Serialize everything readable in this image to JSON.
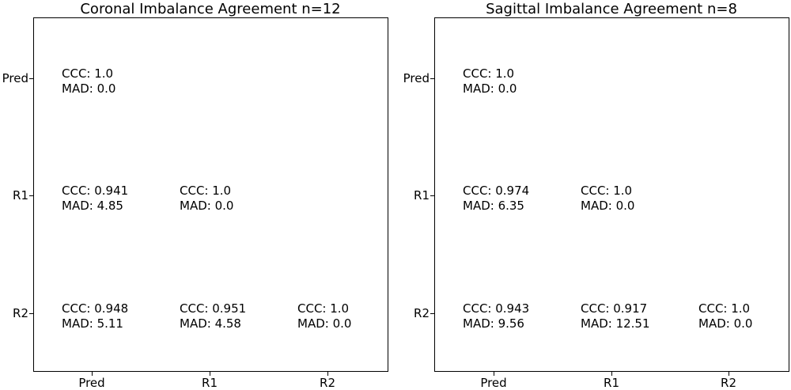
{
  "chart_data": [
    {
      "type": "table",
      "title": "Coronal Imbalance Agreement  n=12",
      "row_labels": [
        "Pred",
        "R1",
        "R2"
      ],
      "col_labels": [
        "Pred",
        "R1",
        "R2"
      ],
      "cells": [
        {
          "row": "Pred",
          "col": "Pred",
          "ccc_text": "CCC: 1.0",
          "mad_text": "MAD: 0.0"
        },
        {
          "row": "R1",
          "col": "Pred",
          "ccc_text": "CCC: 0.941",
          "mad_text": "MAD: 4.85"
        },
        {
          "row": "R1",
          "col": "R1",
          "ccc_text": "CCC: 1.0",
          "mad_text": "MAD: 0.0"
        },
        {
          "row": "R2",
          "col": "Pred",
          "ccc_text": "CCC: 0.948",
          "mad_text": "MAD: 5.11"
        },
        {
          "row": "R2",
          "col": "R1",
          "ccc_text": "CCC: 0.951",
          "mad_text": "MAD: 4.58"
        },
        {
          "row": "R2",
          "col": "R2",
          "ccc_text": "CCC: 1.0",
          "mad_text": "MAD: 0.0"
        }
      ]
    },
    {
      "type": "table",
      "title": "Sagittal Imbalance Agreement  n=8",
      "row_labels": [
        "Pred",
        "R1",
        "R2"
      ],
      "col_labels": [
        "Pred",
        "R1",
        "R2"
      ],
      "cells": [
        {
          "row": "Pred",
          "col": "Pred",
          "ccc_text": "CCC: 1.0",
          "mad_text": "MAD: 0.0"
        },
        {
          "row": "R1",
          "col": "Pred",
          "ccc_text": "CCC: 0.974",
          "mad_text": "MAD: 6.35"
        },
        {
          "row": "R1",
          "col": "R1",
          "ccc_text": "CCC: 1.0",
          "mad_text": "MAD: 0.0"
        },
        {
          "row": "R2",
          "col": "Pred",
          "ccc_text": "CCC: 0.943",
          "mad_text": "MAD: 9.56"
        },
        {
          "row": "R2",
          "col": "R1",
          "ccc_text": "CCC: 0.917",
          "mad_text": "MAD: 12.51"
        },
        {
          "row": "R2",
          "col": "R2",
          "ccc_text": "CCC: 1.0",
          "mad_text": "MAD: 0.0"
        }
      ]
    }
  ]
}
